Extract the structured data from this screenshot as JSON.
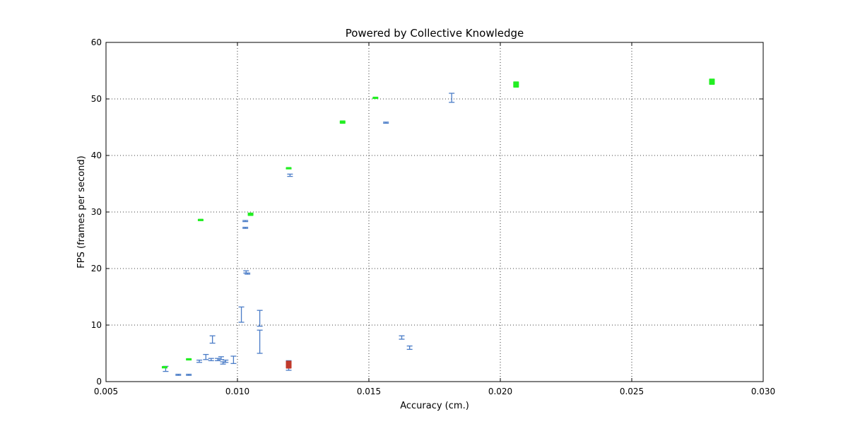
{
  "chart_data": {
    "type": "scatter",
    "title": "Powered by Collective Knowledge",
    "xlabel": "Accuracy (cm.)",
    "ylabel": "FPS (frames per second)",
    "xlim": [
      0.005,
      0.03
    ],
    "ylim": [
      0,
      60
    ],
    "xticks": [
      "0.005",
      "0.010",
      "0.015",
      "0.020",
      "0.025",
      "0.030"
    ],
    "xtick_values": [
      0.005,
      0.01,
      0.015,
      0.02,
      0.025,
      0.03
    ],
    "yticks": [
      "0",
      "10",
      "20",
      "30",
      "40",
      "50",
      "60"
    ],
    "ytick_values": [
      0,
      10,
      20,
      30,
      40,
      50,
      60
    ],
    "grid": true,
    "series": [
      {
        "color": "#4a7cc7",
        "points": [
          {
            "x": 0.00727,
            "y": 2.2,
            "ylo": 1.8,
            "yhi": 2.7
          },
          {
            "x": 0.00775,
            "y": 1.2,
            "ylo": 1.1,
            "yhi": 1.3
          },
          {
            "x": 0.00815,
            "y": 1.2,
            "ylo": 1.1,
            "yhi": 1.3
          },
          {
            "x": 0.00855,
            "y": 3.6,
            "ylo": 3.4,
            "yhi": 3.8
          },
          {
            "x": 0.0088,
            "y": 4.4,
            "ylo": 3.9,
            "yhi": 4.8
          },
          {
            "x": 0.009,
            "y": 3.9,
            "ylo": 3.7,
            "yhi": 4.1
          },
          {
            "x": 0.00905,
            "y": 7.4,
            "ylo": 6.8,
            "yhi": 8.1
          },
          {
            "x": 0.00925,
            "y": 3.9,
            "ylo": 3.7,
            "yhi": 4.1
          },
          {
            "x": 0.00938,
            "y": 4.1,
            "ylo": 3.9,
            "yhi": 4.4
          },
          {
            "x": 0.00945,
            "y": 3.3,
            "ylo": 3.1,
            "yhi": 3.5
          },
          {
            "x": 0.00955,
            "y": 3.6,
            "ylo": 3.4,
            "yhi": 3.8
          },
          {
            "x": 0.00985,
            "y": 3.8,
            "ylo": 3.2,
            "yhi": 4.5
          },
          {
            "x": 0.01015,
            "y": 11.8,
            "ylo": 10.5,
            "yhi": 13.2
          },
          {
            "x": 0.0103,
            "y": 28.4,
            "ylo": 28.3,
            "yhi": 28.5
          },
          {
            "x": 0.0103,
            "y": 27.2,
            "ylo": 27.1,
            "yhi": 27.3
          },
          {
            "x": 0.01033,
            "y": 19.4,
            "ylo": 19.2,
            "yhi": 19.6
          },
          {
            "x": 0.01038,
            "y": 19.1,
            "ylo": 19.0,
            "yhi": 19.2
          },
          {
            "x": 0.01085,
            "y": 11.2,
            "ylo": 9.8,
            "yhi": 12.6
          },
          {
            "x": 0.01085,
            "y": 7.0,
            "ylo": 5.0,
            "yhi": 9.1
          },
          {
            "x": 0.01195,
            "y": 2.8,
            "ylo": 2.0,
            "yhi": 3.7
          },
          {
            "x": 0.012,
            "y": 36.5,
            "ylo": 36.3,
            "yhi": 36.7
          },
          {
            "x": 0.01565,
            "y": 45.8,
            "ylo": 45.7,
            "yhi": 45.9
          },
          {
            "x": 0.01625,
            "y": 7.8,
            "ylo": 7.5,
            "yhi": 8.1
          },
          {
            "x": 0.01655,
            "y": 6.0,
            "ylo": 5.7,
            "yhi": 6.3
          },
          {
            "x": 0.01815,
            "y": 50.2,
            "ylo": 49.4,
            "yhi": 51.0
          }
        ]
      },
      {
        "color": "#22ee22",
        "points": [
          {
            "x": 0.00723,
            "y": 2.6,
            "ylo": 2.55,
            "yhi": 2.65
          },
          {
            "x": 0.00815,
            "y": 4.0,
            "ylo": 3.95,
            "yhi": 4.05
          },
          {
            "x": 0.0086,
            "y": 28.6,
            "ylo": 28.5,
            "yhi": 28.7
          },
          {
            "x": 0.0105,
            "y": 29.6,
            "ylo": 29.4,
            "yhi": 29.8
          },
          {
            "x": 0.01195,
            "y": 37.8,
            "ylo": 37.75,
            "yhi": 37.85
          },
          {
            "x": 0.014,
            "y": 45.9,
            "ylo": 45.7,
            "yhi": 46.1
          },
          {
            "x": 0.01525,
            "y": 50.2,
            "ylo": 50.1,
            "yhi": 50.3
          },
          {
            "x": 0.0206,
            "y": 52.5,
            "ylo": 52.1,
            "yhi": 53.0
          },
          {
            "x": 0.02805,
            "y": 53.0,
            "ylo": 52.6,
            "yhi": 53.5
          }
        ]
      },
      {
        "color": "#c0392b",
        "points": [
          {
            "x": 0.01195,
            "y": 3.0,
            "ylo": 2.4,
            "yhi": 3.6
          }
        ]
      }
    ]
  }
}
